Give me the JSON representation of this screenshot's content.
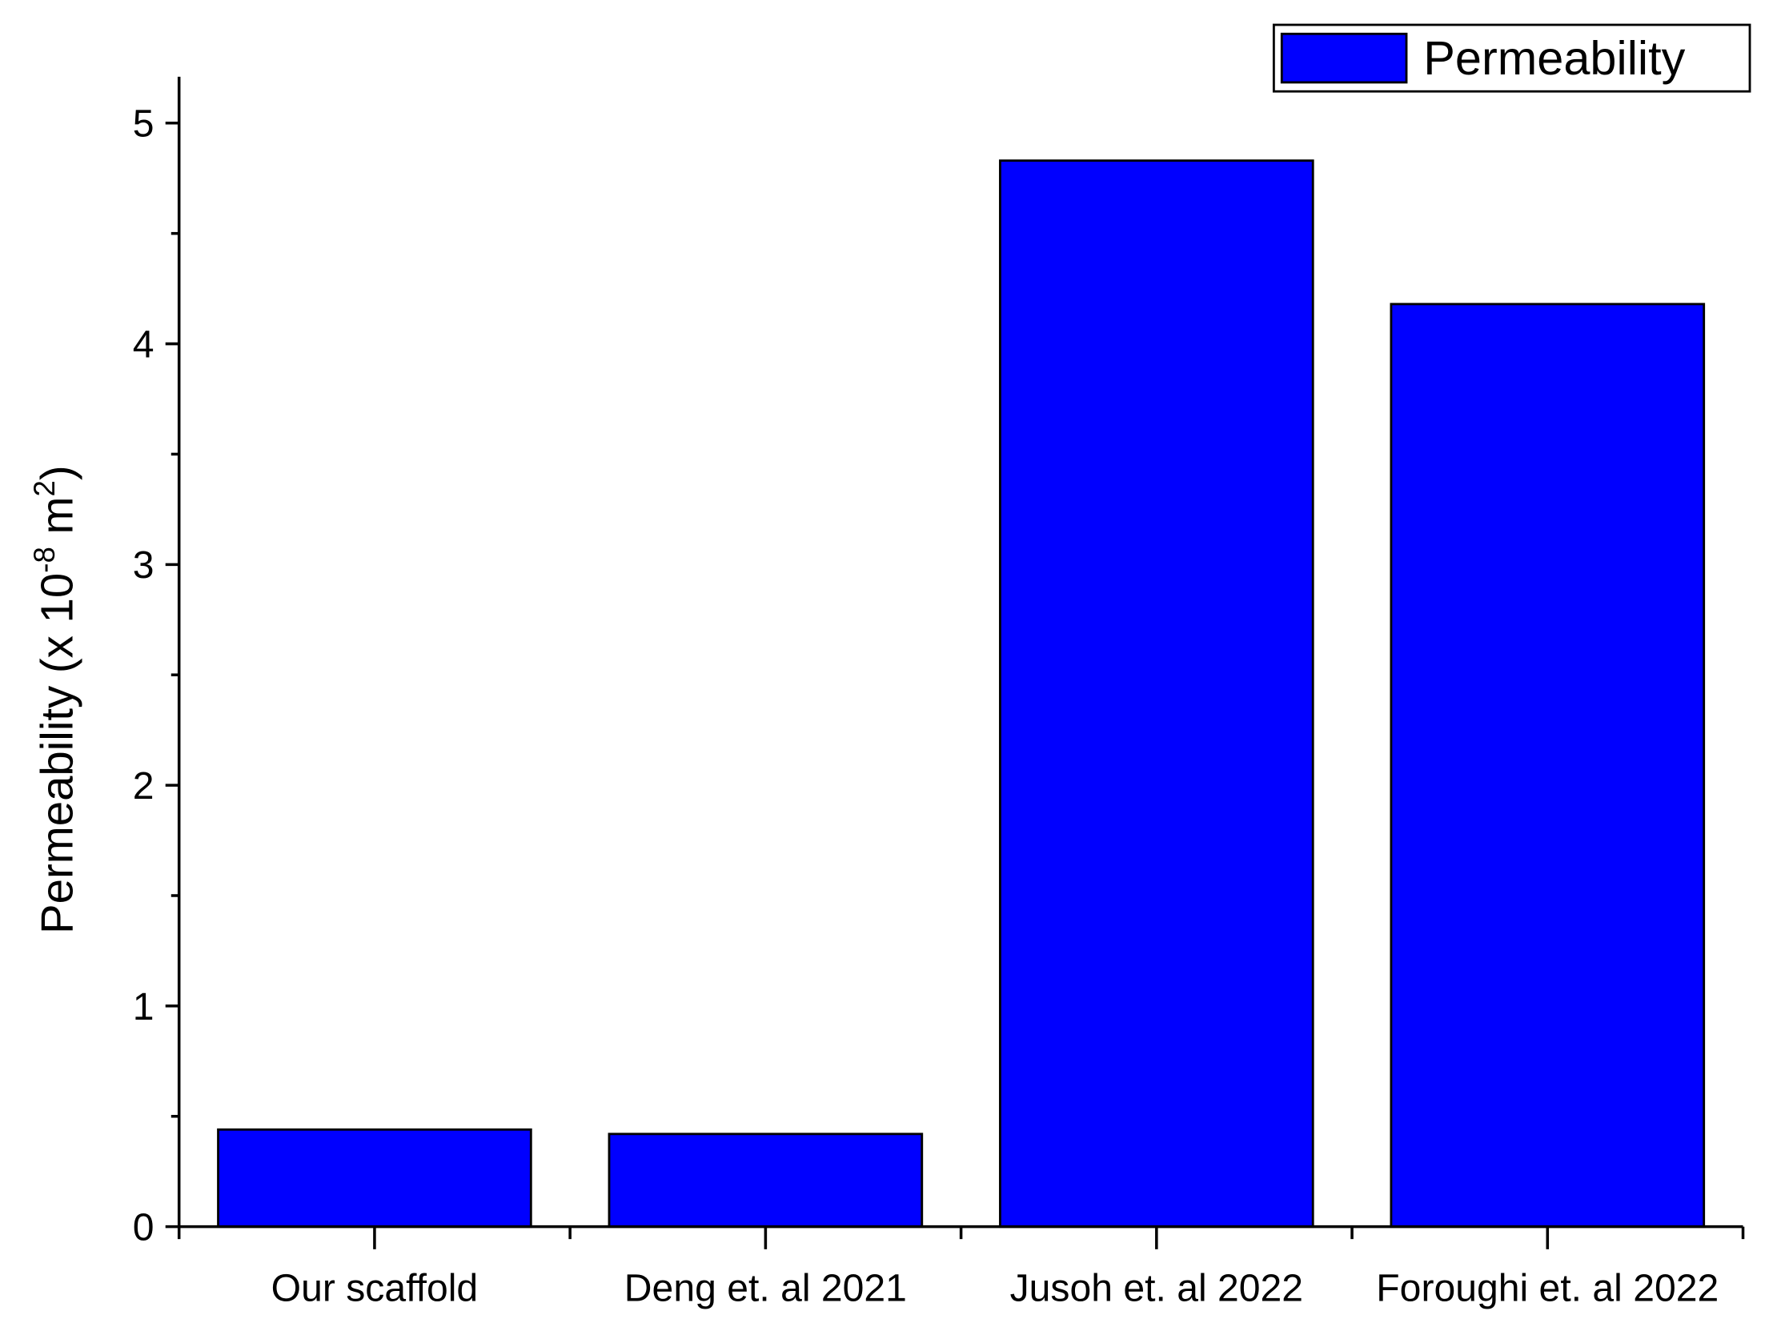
{
  "chart_data": {
    "type": "bar",
    "categories": [
      "Our scaffold",
      "Deng et. al 2021",
      "Jusoh et. al 2022",
      "Foroughi et. al 2022"
    ],
    "series": [
      {
        "name": "Permeability",
        "color": "#0000ff",
        "values": [
          0.44,
          0.42,
          4.83,
          4.18
        ]
      }
    ],
    "ylabel_parts": [
      "Permeability (x 10",
      "-8",
      " m",
      "2",
      ")"
    ],
    "ylim": [
      0,
      5.21
    ],
    "yticks": [
      0,
      1,
      2,
      3,
      4,
      5
    ],
    "yminor_ticks": [
      0.5,
      1.5,
      2.5,
      3.5,
      4.5
    ],
    "legend": "top-right"
  }
}
